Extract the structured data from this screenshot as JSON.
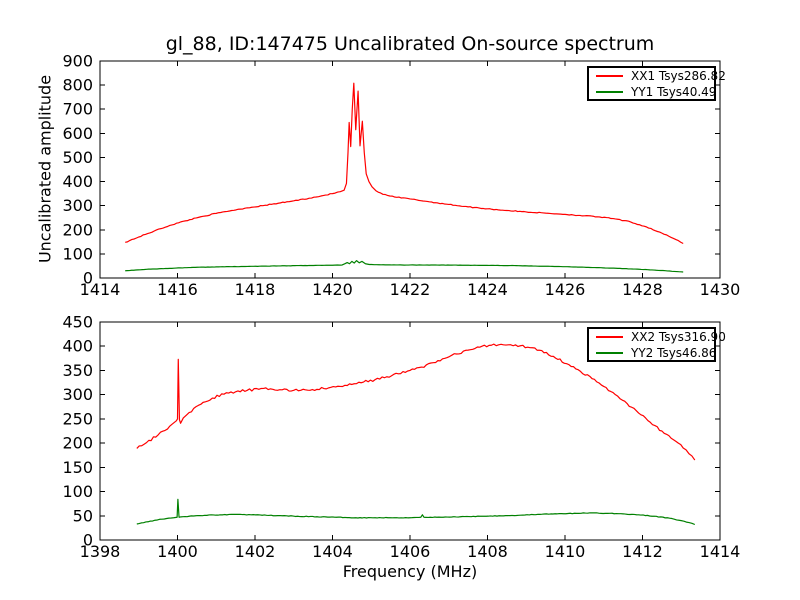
{
  "figure": {
    "title": "gl_88, ID:147475 Uncalibrated On-source spectrum",
    "background_color": "#ffffff",
    "axis_color": "#000000"
  },
  "chart_data": [
    {
      "type": "line",
      "title": "gl_88, ID:147475 Uncalibrated On-source spectrum",
      "xlabel": "",
      "ylabel": "Uncalibrated amplitude",
      "xlim": [
        1414,
        1430
      ],
      "ylim": [
        0,
        900
      ],
      "xticks": [
        1414,
        1416,
        1418,
        1420,
        1422,
        1424,
        1426,
        1428,
        1430
      ],
      "yticks": [
        0,
        100,
        200,
        300,
        400,
        500,
        600,
        700,
        800,
        900
      ],
      "grid": false,
      "legend_position": "upper-right",
      "series": [
        {
          "name": "XX1 Tsys286.82",
          "color": "#ff0000",
          "noise": 1.8,
          "points": [
            [
              1414.65,
              148
            ],
            [
              1415.0,
              170
            ],
            [
              1415.4,
              195
            ],
            [
              1415.8,
              218
            ],
            [
              1416.2,
              237
            ],
            [
              1416.6,
              254
            ],
            [
              1417.0,
              268
            ],
            [
              1417.4,
              280
            ],
            [
              1417.8,
              291
            ],
            [
              1418.2,
              300
            ],
            [
              1418.6,
              310
            ],
            [
              1419.0,
              320
            ],
            [
              1419.4,
              331
            ],
            [
              1419.7,
              340
            ],
            [
              1420.0,
              350
            ],
            [
              1420.2,
              358
            ],
            [
              1420.3,
              364
            ],
            [
              1420.36,
              392
            ],
            [
              1420.4,
              520
            ],
            [
              1420.43,
              645
            ],
            [
              1420.47,
              545
            ],
            [
              1420.51,
              700
            ],
            [
              1420.55,
              808
            ],
            [
              1420.6,
              615
            ],
            [
              1420.66,
              775
            ],
            [
              1420.71,
              548
            ],
            [
              1420.77,
              650
            ],
            [
              1420.82,
              520
            ],
            [
              1420.87,
              432
            ],
            [
              1420.94,
              400
            ],
            [
              1421.02,
              378
            ],
            [
              1421.12,
              362
            ],
            [
              1421.3,
              347
            ],
            [
              1421.6,
              336
            ],
            [
              1422.0,
              328
            ],
            [
              1422.5,
              316
            ],
            [
              1423.0,
              305
            ],
            [
              1423.5,
              295
            ],
            [
              1424.0,
              287
            ],
            [
              1424.5,
              280
            ],
            [
              1425.0,
              274
            ],
            [
              1425.5,
              269
            ],
            [
              1426.0,
              264
            ],
            [
              1426.5,
              258
            ],
            [
              1426.9,
              253
            ],
            [
              1427.3,
              245
            ],
            [
              1427.7,
              232
            ],
            [
              1428.1,
              212
            ],
            [
              1428.5,
              186
            ],
            [
              1428.8,
              164
            ],
            [
              1429.05,
              143
            ]
          ]
        },
        {
          "name": "YY1 Tsys40.49",
          "color": "#008000",
          "noise": 0.5,
          "points": [
            [
              1414.65,
              30
            ],
            [
              1415.2,
              36
            ],
            [
              1415.8,
              40
            ],
            [
              1416.4,
              44
            ],
            [
              1417.0,
              46
            ],
            [
              1417.8,
              48
            ],
            [
              1418.6,
              50
            ],
            [
              1419.4,
              52
            ],
            [
              1420.0,
              53
            ],
            [
              1420.25,
              54
            ],
            [
              1420.38,
              64
            ],
            [
              1420.44,
              59
            ],
            [
              1420.5,
              69
            ],
            [
              1420.56,
              62
            ],
            [
              1420.62,
              72
            ],
            [
              1420.69,
              63
            ],
            [
              1420.76,
              69
            ],
            [
              1420.85,
              59
            ],
            [
              1420.95,
              56
            ],
            [
              1421.2,
              55
            ],
            [
              1421.8,
              54
            ],
            [
              1422.6,
              54
            ],
            [
              1423.4,
              53
            ],
            [
              1424.2,
              52
            ],
            [
              1424.8,
              51
            ],
            [
              1425.4,
              49
            ],
            [
              1426.0,
              47
            ],
            [
              1426.6,
              44
            ],
            [
              1427.2,
              41
            ],
            [
              1427.8,
              37
            ],
            [
              1428.3,
              33
            ],
            [
              1428.7,
              29
            ],
            [
              1429.05,
              25
            ]
          ]
        }
      ]
    },
    {
      "type": "line",
      "title": "",
      "xlabel": "Frequency (MHz)",
      "ylabel": "",
      "xlim": [
        1398,
        1414
      ],
      "ylim": [
        0,
        450
      ],
      "xticks": [
        1398,
        1400,
        1402,
        1404,
        1406,
        1408,
        1410,
        1412,
        1414
      ],
      "yticks": [
        0,
        50,
        100,
        150,
        200,
        250,
        300,
        350,
        400,
        450
      ],
      "grid": false,
      "legend_position": "upper-right",
      "series": [
        {
          "name": "XX2 Tsys316.90",
          "color": "#ff0000",
          "noise": 2.6,
          "points": [
            [
              1398.95,
              189
            ],
            [
              1399.2,
              201
            ],
            [
              1399.5,
              217
            ],
            [
              1399.8,
              235
            ],
            [
              1399.97,
              246
            ],
            [
              1400.0,
              250
            ],
            [
              1400.02,
              373
            ],
            [
              1400.05,
              248
            ],
            [
              1400.08,
              241
            ],
            [
              1400.15,
              252
            ],
            [
              1400.3,
              263
            ],
            [
              1400.6,
              280
            ],
            [
              1400.9,
              293
            ],
            [
              1401.2,
              301
            ],
            [
              1401.5,
              306
            ],
            [
              1401.8,
              309
            ],
            [
              1402.1,
              311
            ],
            [
              1402.4,
              312
            ],
            [
              1402.7,
              310
            ],
            [
              1403.0,
              309
            ],
            [
              1403.3,
              310
            ],
            [
              1403.6,
              311
            ],
            [
              1403.9,
              314
            ],
            [
              1404.2,
              317
            ],
            [
              1404.5,
              321
            ],
            [
              1404.8,
              326
            ],
            [
              1405.1,
              331
            ],
            [
              1405.4,
              337
            ],
            [
              1405.7,
              343
            ],
            [
              1406.0,
              350
            ],
            [
              1406.3,
              357
            ],
            [
              1406.6,
              366
            ],
            [
              1406.9,
              375
            ],
            [
              1407.2,
              384
            ],
            [
              1407.5,
              392
            ],
            [
              1407.8,
              398
            ],
            [
              1408.1,
              402
            ],
            [
              1408.35,
              404
            ],
            [
              1408.6,
              403
            ],
            [
              1408.85,
              401
            ],
            [
              1409.1,
              397
            ],
            [
              1409.4,
              391
            ],
            [
              1409.7,
              379
            ],
            [
              1410.1,
              362
            ],
            [
              1410.4,
              348
            ],
            [
              1410.7,
              333
            ],
            [
              1411.0,
              317
            ],
            [
              1411.3,
              300
            ],
            [
              1411.6,
              282
            ],
            [
              1411.9,
              262
            ],
            [
              1412.2,
              243
            ],
            [
              1412.5,
              225
            ],
            [
              1412.8,
              207
            ],
            [
              1413.05,
              190
            ],
            [
              1413.2,
              178
            ],
            [
              1413.35,
              165
            ]
          ]
        },
        {
          "name": "YY2 Tsys46.86",
          "color": "#008000",
          "noise": 0.6,
          "points": [
            [
              1398.95,
              33
            ],
            [
              1399.3,
              39
            ],
            [
              1399.6,
              43
            ],
            [
              1399.9,
              46
            ],
            [
              1399.99,
              47
            ],
            [
              1400.01,
              84
            ],
            [
              1400.04,
              47
            ],
            [
              1400.3,
              49
            ],
            [
              1400.7,
              51
            ],
            [
              1401.1,
              52
            ],
            [
              1401.5,
              53
            ],
            [
              1401.9,
              52
            ],
            [
              1402.3,
              51
            ],
            [
              1402.7,
              50
            ],
            [
              1403.1,
              49
            ],
            [
              1403.6,
              48
            ],
            [
              1404.1,
              47
            ],
            [
              1404.6,
              46
            ],
            [
              1405.1,
              46
            ],
            [
              1405.6,
              46
            ],
            [
              1406.0,
              46
            ],
            [
              1406.28,
              47
            ],
            [
              1406.32,
              52
            ],
            [
              1406.36,
              47
            ],
            [
              1406.8,
              47
            ],
            [
              1407.3,
              48
            ],
            [
              1407.8,
              49
            ],
            [
              1408.3,
              50
            ],
            [
              1408.8,
              51
            ],
            [
              1409.3,
              53
            ],
            [
              1409.8,
              54
            ],
            [
              1410.3,
              55
            ],
            [
              1410.7,
              56
            ],
            [
              1411.1,
              55
            ],
            [
              1411.5,
              54
            ],
            [
              1411.9,
              52
            ],
            [
              1412.3,
              49
            ],
            [
              1412.7,
              45
            ],
            [
              1413.0,
              40
            ],
            [
              1413.2,
              36
            ],
            [
              1413.35,
              32
            ]
          ]
        }
      ]
    }
  ]
}
